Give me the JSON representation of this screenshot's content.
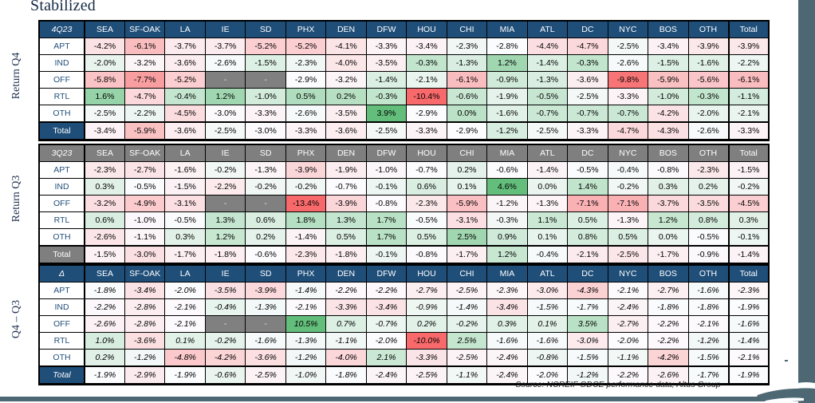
{
  "title": "Stabilized",
  "footer": {
    "source": "Source: NCREIF ODCE performance data; Altus Group"
  },
  "colors": {
    "navy_header": "#1F4E79",
    "gray_header": "#7F7F7F",
    "missing_cell": "#808080",
    "scale_min_red": "#F8696B",
    "scale_mid_white": "#FCFCFF",
    "scale_max_green": "#63BE7B",
    "accent_slate": "#4D6873"
  },
  "chart_data": {
    "type": "heatmap",
    "title": "Stabilized",
    "columns": [
      "SEA",
      "SF-OAK",
      "LA",
      "IE",
      "SD",
      "PHX",
      "DEN",
      "DFW",
      "HOU",
      "CHI",
      "MIA",
      "ATL",
      "DC",
      "NYC",
      "BOS",
      "OTH",
      "Total"
    ],
    "rows": [
      "APT",
      "IND",
      "OFF",
      "RTL",
      "OTH",
      "Total"
    ],
    "color_scale": {
      "min_color": "#F8696B",
      "mid_color": "#FCFCFF",
      "max_color": "#63BE7B",
      "midpoint": "50th-percentile-per-table",
      "missing_color": "#808080"
    },
    "tables": [
      {
        "name": "4Q23",
        "side_label": "Return Q4",
        "header_color": "#1F4E79",
        "italic": false,
        "values": [
          [
            "-4.2%",
            "-6.1%",
            "-3.7%",
            "-3.7%",
            "-5.2%",
            "-5.2%",
            "-4.1%",
            "-3.3%",
            "-3.4%",
            "-2.3%",
            "-2.8%",
            "-4.4%",
            "-4.7%",
            "-2.5%",
            "-3.4%",
            "-3.9%",
            "-3.9%"
          ],
          [
            "-2.0%",
            "-3.2%",
            "-3.6%",
            "-2.6%",
            "-1.5%",
            "-2.3%",
            "-4.0%",
            "-3.5%",
            "-0.3%",
            "-1.3%",
            "1.2%",
            "-1.4%",
            "-0.3%",
            "-2.6%",
            "-1.5%",
            "-1.6%",
            "-2.2%"
          ],
          [
            "-5.8%",
            "-7.7%",
            "-5.2%",
            "-",
            "-",
            "-2.9%",
            "-3.2%",
            "-1.4%",
            "-2.1%",
            "-6.1%",
            "-0.9%",
            "-1.3%",
            "-3.6%",
            "-9.8%",
            "-5.9%",
            "-5.6%",
            "-6.1%"
          ],
          [
            "1.6%",
            "-4.7%",
            "-0.4%",
            "1.2%",
            "-1.0%",
            "0.5%",
            "0.2%",
            "-0.3%",
            "-10.4%",
            "-0.6%",
            "-1.9%",
            "-0.5%",
            "-2.5%",
            "-3.3%",
            "-1.0%",
            "-0.3%",
            "-1.1%"
          ],
          [
            "-2.5%",
            "-2.2%",
            "-4.5%",
            "-3.0%",
            "-3.3%",
            "-2.6%",
            "-3.5%",
            "3.9%",
            "-2.9%",
            "0.0%",
            "-1.6%",
            "-0.7%",
            "-0.7%",
            "-0.7%",
            "-4.2%",
            "-2.0%",
            "-2.1%"
          ],
          [
            "-3.4%",
            "-5.9%",
            "-3.6%",
            "-2.5%",
            "-3.0%",
            "-3.3%",
            "-3.6%",
            "-2.5%",
            "-3.3%",
            "-2.9%",
            "-1.2%",
            "-2.5%",
            "-3.3%",
            "-4.7%",
            "-4.3%",
            "-2.6%",
            "-3.3%"
          ]
        ]
      },
      {
        "name": "3Q23",
        "side_label": "Return Q3",
        "header_color": "#7F7F7F",
        "italic": false,
        "values": [
          [
            "-2.3%",
            "-2.7%",
            "-1.6%",
            "-0.2%",
            "-1.3%",
            "-3.9%",
            "-1.9%",
            "-1.0%",
            "-0.7%",
            "0.2%",
            "-0.6%",
            "-1.4%",
            "-0.5%",
            "-0.4%",
            "-0.8%",
            "-2.3%",
            "-1.5%"
          ],
          [
            "0.3%",
            "-0.5%",
            "-1.5%",
            "-2.2%",
            "-0.2%",
            "-0.2%",
            "-0.7%",
            "-0.1%",
            "0.6%",
            "0.1%",
            "4.6%",
            "0.0%",
            "1.4%",
            "-0.2%",
            "0.3%",
            "0.2%",
            "-0.2%"
          ],
          [
            "-3.2%",
            "-4.9%",
            "-3.1%",
            "-",
            "-",
            "-13.4%",
            "-3.9%",
            "-0.8%",
            "-2.3%",
            "-5.9%",
            "-1.2%",
            "-1.3%",
            "-7.1%",
            "-7.1%",
            "-3.7%",
            "-3.5%",
            "-4.5%"
          ],
          [
            "0.6%",
            "-1.0%",
            "-0.5%",
            "1.3%",
            "0.6%",
            "1.8%",
            "1.3%",
            "1.7%",
            "-0.5%",
            "-3.1%",
            "-0.3%",
            "1.1%",
            "0.5%",
            "-1.3%",
            "1.2%",
            "0.8%",
            "0.3%"
          ],
          [
            "-2.6%",
            "-1.1%",
            "0.3%",
            "1.2%",
            "0.2%",
            "-1.4%",
            "0.5%",
            "1.7%",
            "0.5%",
            "2.5%",
            "0.9%",
            "0.1%",
            "0.8%",
            "0.5%",
            "0.0%",
            "-0.5%",
            "-0.1%"
          ],
          [
            "-1.5%",
            "-3.0%",
            "-1.7%",
            "-1.8%",
            "-0.6%",
            "-2.3%",
            "-1.8%",
            "-0.1%",
            "-0.8%",
            "-1.7%",
            "1.2%",
            "-0.4%",
            "-2.1%",
            "-2.5%",
            "-1.7%",
            "-0.9%",
            "-1.4%"
          ]
        ]
      },
      {
        "name": "Δ",
        "side_label": "Q4 – Q3",
        "header_color": "#1F4E79",
        "italic": true,
        "values": [
          [
            "-1.8%",
            "-3.4%",
            "-2.0%",
            "-3.5%",
            "-3.9%",
            "-1.4%",
            "-2.2%",
            "-2.2%",
            "-2.7%",
            "-2.5%",
            "-2.3%",
            "-3.0%",
            "-4.3%",
            "-2.1%",
            "-2.7%",
            "-1.6%",
            "-2.3%"
          ],
          [
            "-2.2%",
            "-2.8%",
            "-2.1%",
            "-0.4%",
            "-1.3%",
            "-2.1%",
            "-3.3%",
            "-3.4%",
            "-0.9%",
            "-1.4%",
            "-3.4%",
            "-1.5%",
            "-1.7%",
            "-2.4%",
            "-1.8%",
            "-1.8%",
            "-1.9%"
          ],
          [
            "-2.6%",
            "-2.8%",
            "-2.1%",
            "-",
            "-",
            "10.5%",
            "0.7%",
            "-0.7%",
            "0.2%",
            "-0.2%",
            "0.3%",
            "0.1%",
            "3.5%",
            "-2.7%",
            "-2.2%",
            "-2.1%",
            "-1.6%"
          ],
          [
            "1.0%",
            "-3.6%",
            "0.1%",
            "-0.2%",
            "-1.6%",
            "-1.3%",
            "-1.1%",
            "-2.0%",
            "-10.0%",
            "2.5%",
            "-1.6%",
            "-1.6%",
            "-3.0%",
            "-2.0%",
            "-2.2%",
            "-1.2%",
            "-1.4%"
          ],
          [
            "0.2%",
            "-1.2%",
            "-4.8%",
            "-4.2%",
            "-3.6%",
            "-1.2%",
            "-4.0%",
            "2.1%",
            "-3.3%",
            "-2.5%",
            "-2.4%",
            "-0.8%",
            "-1.5%",
            "-1.1%",
            "-4.2%",
            "-1.5%",
            "-2.1%"
          ],
          [
            "-1.9%",
            "-2.9%",
            "-1.9%",
            "-0.6%",
            "-2.5%",
            "-1.0%",
            "-1.8%",
            "-2.4%",
            "-2.5%",
            "-1.1%",
            "-2.4%",
            "-2.0%",
            "-1.2%",
            "-2.2%",
            "-2.6%",
            "-1.7%",
            "-1.9%"
          ]
        ]
      }
    ]
  }
}
